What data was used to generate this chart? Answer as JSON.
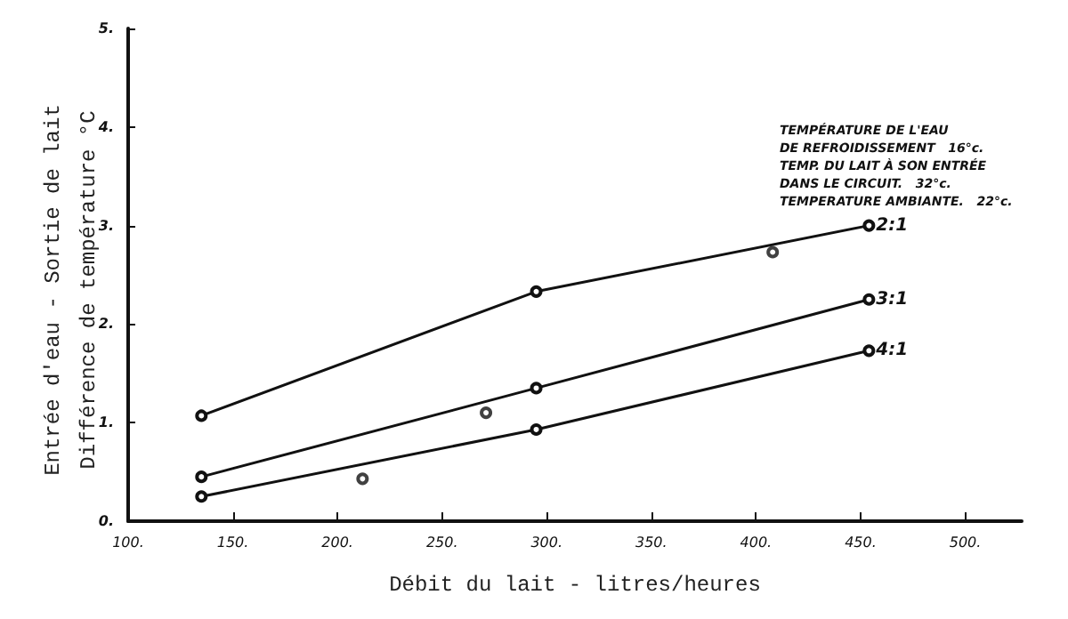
{
  "chart_data": {
    "type": "line",
    "xlabel": "Débit du lait - litres/heures",
    "ylabel": "Entrée d'eau - Sortie de lait\nDifférence de température °C",
    "series": [
      {
        "name": "2:1",
        "color": "#111111",
        "x": [
          135,
          295,
          454
        ],
        "values": [
          1.07,
          2.33,
          3.0
        ]
      },
      {
        "name": "3:1",
        "color": "#111111",
        "x": [
          135,
          295,
          454
        ],
        "values": [
          0.45,
          1.35,
          2.25
        ]
      },
      {
        "name": "4:1",
        "color": "#111111",
        "x": [
          135,
          295,
          454
        ],
        "values": [
          0.25,
          0.93,
          1.73
        ]
      },
      {
        "type": "scatter",
        "color": "#111111",
        "x": [
          212,
          271,
          408
        ],
        "values": [
          0.43,
          1.1,
          2.73
        ]
      }
    ],
    "xlim": [
      100,
      527
    ],
    "xticks": [
      {
        "value": 100,
        "label": "100."
      },
      {
        "value": 150,
        "label": "150."
      },
      {
        "value": 200,
        "label": "200."
      },
      {
        "value": 250,
        "label": "250."
      },
      {
        "value": 300,
        "label": "300."
      },
      {
        "value": 350,
        "label": "350."
      },
      {
        "value": 400,
        "label": "400."
      },
      {
        "value": 450,
        "label": "450."
      },
      {
        "value": 500,
        "label": "500."
      }
    ],
    "ylim": [
      0,
      5
    ],
    "yticks": [
      {
        "value": 0,
        "label": "0."
      },
      {
        "value": 1,
        "label": "1."
      },
      {
        "value": 2,
        "label": "2."
      },
      {
        "value": 3,
        "label": "3."
      },
      {
        "value": 4,
        "label": "4."
      },
      {
        "value": 5,
        "label": "5."
      }
    ],
    "annotations": [
      "TEMPÉRATURE DE L'EAU",
      "DE REFROIDISSEMENT   16°c.",
      "TEMP. DU LAIT À SON ENTRÉE",
      "DANS LE CIRCUIT.   32°c.",
      "TEMPERATURE AMBIANTE.   22°c."
    ],
    "grid": false,
    "legend": false,
    "marker": "circle",
    "line_style": "solid"
  }
}
